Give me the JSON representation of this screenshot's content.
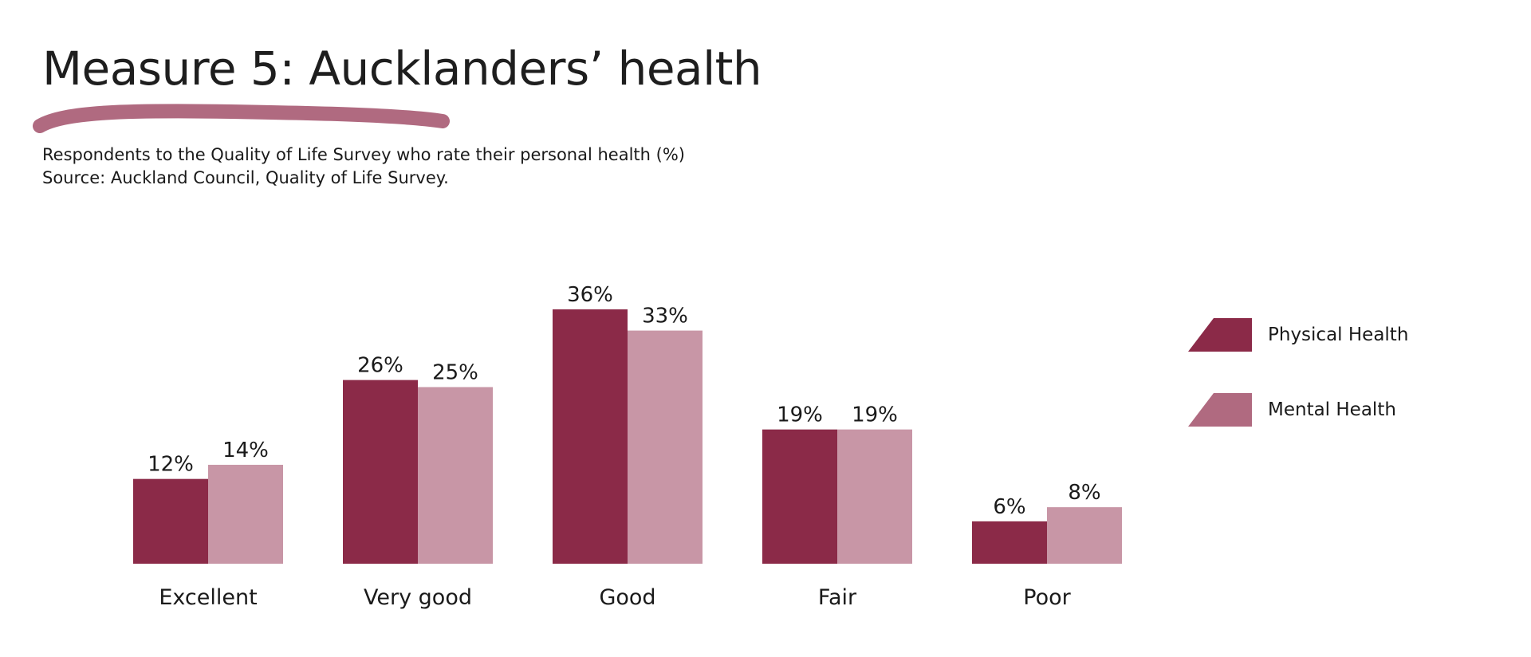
{
  "header": {
    "title": "Measure 5: Aucklanders’ health",
    "subtitle_line1": "Respondents to the Quality of Life Survey who rate their personal health (%)",
    "subtitle_line2": "Source: Auckland Council, Quality of Life Survey."
  },
  "colors": {
    "physical": "#8b2a48",
    "mental": "#c896a6",
    "accent": "#b06a80",
    "text": "#1a1a1a"
  },
  "chart_data": {
    "type": "bar",
    "title": "Measure 5: Aucklanders’ health",
    "categories": [
      "Excellent",
      "Very good",
      "Good",
      "Fair",
      "Poor"
    ],
    "series": [
      {
        "name": "Physical Health",
        "values": [
          12,
          26,
          36,
          19,
          6
        ],
        "labels": [
          "12%",
          "26%",
          "36%",
          "19%",
          "6%"
        ]
      },
      {
        "name": "Mental Health",
        "values": [
          14,
          25,
          33,
          19,
          8
        ],
        "labels": [
          "14%",
          "25%",
          "33%",
          "19%",
          "8%"
        ]
      }
    ],
    "ylim": [
      0,
      36
    ],
    "grid": false,
    "legend": "right"
  },
  "legend": {
    "items": [
      {
        "label": "Physical Health"
      },
      {
        "label": "Mental Health"
      }
    ]
  }
}
